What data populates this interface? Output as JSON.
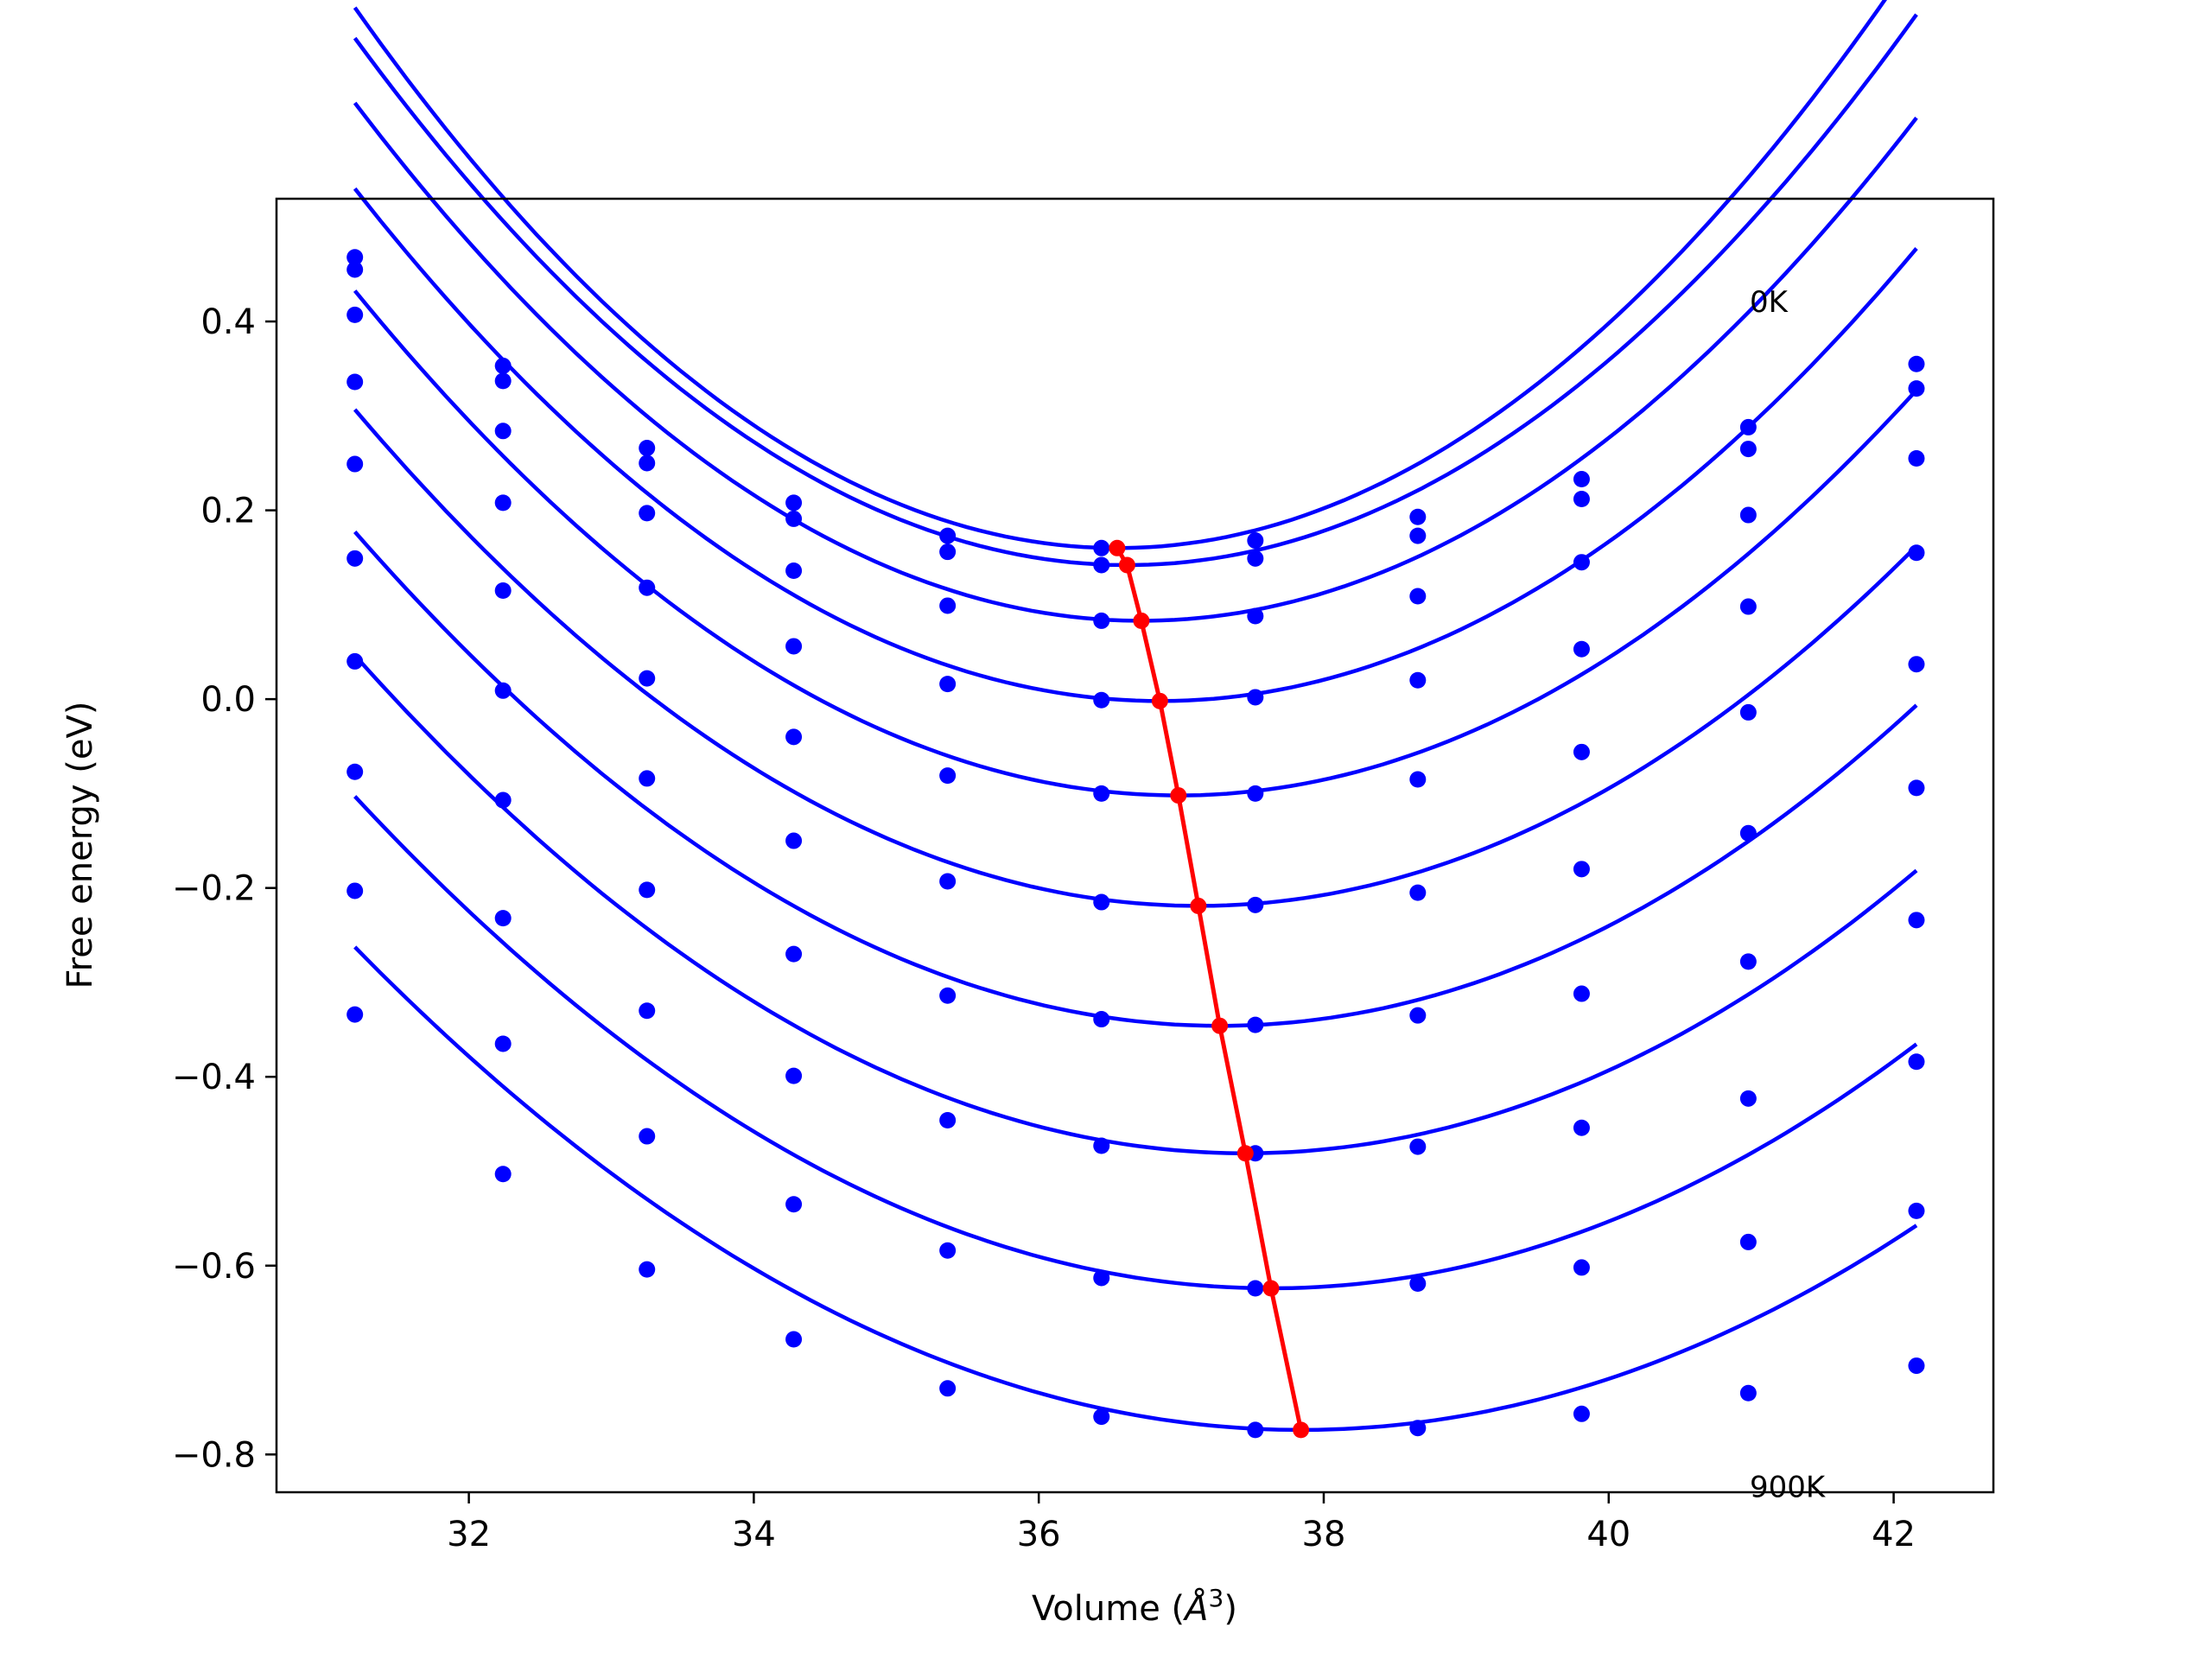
{
  "chart_data": {
    "type": "line",
    "xlabel_main": "Volume (",
    "xlabel_sym": "Å",
    "xlabel_sup": "3",
    "xlabel_close": ")",
    "ylabel": "Free energy (eV)",
    "xlim": [
      30.65,
      42.7
    ],
    "ylim": [
      -0.84,
      0.53
    ],
    "xticks": [
      32,
      34,
      36,
      38,
      40,
      42
    ],
    "xtick_labels": [
      "32",
      "34",
      "36",
      "38",
      "40",
      "42"
    ],
    "yticks": [
      0.4,
      0.2,
      0.0,
      -0.2,
      -0.4,
      -0.6,
      -0.8
    ],
    "ytick_labels": [
      "0.4",
      "0.2",
      "0.0",
      "−0.2",
      "−0.4",
      "−0.6",
      "−0.8"
    ],
    "annotations": [
      {
        "text": "0K",
        "x": 40.99,
        "y": 0.41
      },
      {
        "text": "900K",
        "x": 40.99,
        "y": -0.845
      }
    ],
    "curve_color": "#0000ff",
    "min_color": "#ff0000",
    "x": [
      31.2,
      32.24,
      33.25,
      34.28,
      35.36,
      36.44,
      37.52,
      38.66,
      39.81,
      40.98,
      42.16
    ],
    "series": [
      {
        "values": [
          0.468,
          0.353,
          0.266,
          0.208,
          0.173,
          0.16,
          0.168,
          0.193,
          0.233,
          0.288,
          0.355
        ],
        "fit_a": 0.02,
        "fit_xmin": 36.55,
        "fit_ymin": 0.16
      },
      {
        "values": [
          0.455,
          0.337,
          0.25,
          0.191,
          0.156,
          0.142,
          0.149,
          0.173,
          0.212,
          0.265,
          0.329
        ],
        "fit_a": 0.019,
        "fit_xmin": 36.62,
        "fit_ymin": 0.142
      },
      {
        "values": [
          0.407,
          0.284,
          0.197,
          0.136,
          0.099,
          0.083,
          0.088,
          0.109,
          0.145,
          0.195,
          0.255
        ],
        "fit_a": 0.018,
        "fit_xmin": 36.72,
        "fit_ymin": 0.083
      },
      {
        "values": [
          0.336,
          0.208,
          0.118,
          0.056,
          0.016,
          -0.001,
          0.002,
          0.02,
          0.053,
          0.098,
          0.155
        ],
        "fit_a": 0.017,
        "fit_xmin": 36.85,
        "fit_ymin": -0.002
      },
      {
        "values": [
          0.249,
          0.115,
          0.022,
          -0.04,
          -0.081,
          -0.1,
          -0.1,
          -0.085,
          -0.056,
          -0.014,
          0.037
        ],
        "fit_a": 0.016,
        "fit_xmin": 36.98,
        "fit_ymin": -0.102
      },
      {
        "values": [
          0.149,
          0.009,
          -0.084,
          -0.15,
          -0.193,
          -0.215,
          -0.218,
          -0.205,
          -0.18,
          -0.142,
          -0.094
        ],
        "fit_a": 0.015,
        "fit_xmin": 37.12,
        "fit_ymin": -0.219
      },
      {
        "values": [
          0.04,
          -0.107,
          -0.202,
          -0.27,
          -0.314,
          -0.339,
          -0.345,
          -0.335,
          -0.312,
          -0.278,
          -0.234
        ],
        "fit_a": 0.0142,
        "fit_xmin": 37.27,
        "fit_ymin": -0.346
      },
      {
        "values": [
          -0.077,
          -0.232,
          -0.33,
          -0.399,
          -0.446,
          -0.473,
          -0.481,
          -0.474,
          -0.454,
          -0.423,
          -0.384
        ],
        "fit_a": 0.0135,
        "fit_xmin": 37.45,
        "fit_ymin": -0.481
      },
      {
        "values": [
          -0.203,
          -0.365,
          -0.463,
          -0.535,
          -0.584,
          -0.613,
          -0.624,
          -0.619,
          -0.602,
          -0.575,
          -0.542
        ],
        "fit_a": 0.0126,
        "fit_xmin": 37.63,
        "fit_ymin": -0.624
      },
      {
        "values": [
          -0.334,
          -0.503,
          -0.604,
          -0.678,
          -0.73,
          -0.76,
          -0.774,
          -0.772,
          -0.757,
          -0.735,
          -0.706
        ],
        "fit_a": 0.0116,
        "fit_xmin": 37.84,
        "fit_ymin": -0.774
      }
    ],
    "minimum_line": {
      "x": [
        36.55,
        36.62,
        36.72,
        36.85,
        36.98,
        37.12,
        37.27,
        37.45,
        37.63,
        37.84
      ],
      "y": [
        0.16,
        0.142,
        0.083,
        -0.002,
        -0.102,
        -0.219,
        -0.346,
        -0.481,
        -0.624,
        -0.774
      ]
    }
  }
}
